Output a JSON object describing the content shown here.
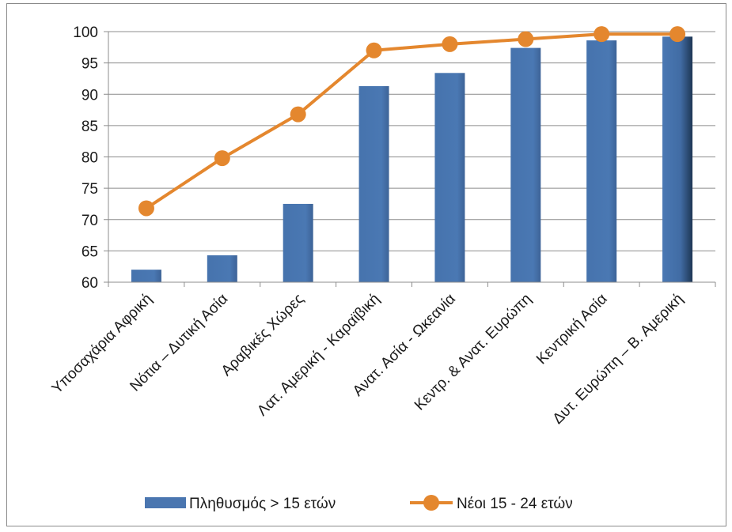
{
  "chart_data": {
    "type": "bar",
    "categories": [
      "Υποσαχάρια Αφρική",
      "Νότια – Δυτική Ασία",
      "Αραβικές Χώρες",
      "Λατ. Αμερική - Καραϊβική",
      "Ανατ. Ασία - Ωκεανία",
      "Κεντρ. & Ανατ. Ευρώπη",
      "Κεντρική Ασία",
      "Δυτ. Ευρώπη – Β. Αμερική"
    ],
    "series": [
      {
        "name": "Πληθυσμός > 15 ετών",
        "type": "bar",
        "color": "#4a76b0",
        "values": [
          62.0,
          64.3,
          72.5,
          91.3,
          93.4,
          97.4,
          98.6,
          99.2
        ]
      },
      {
        "name": "Νέοι 15 - 24 ετών",
        "type": "line",
        "color": "#e4872e",
        "values": [
          71.8,
          79.8,
          86.8,
          97.0,
          98.0,
          98.8,
          99.6,
          99.6
        ]
      }
    ],
    "yticks": [
      "60",
      "65",
      "70",
      "75",
      "80",
      "85",
      "90",
      "95",
      "100"
    ],
    "ylim": [
      60,
      100
    ],
    "grid": true,
    "legend_position": "bottom"
  }
}
